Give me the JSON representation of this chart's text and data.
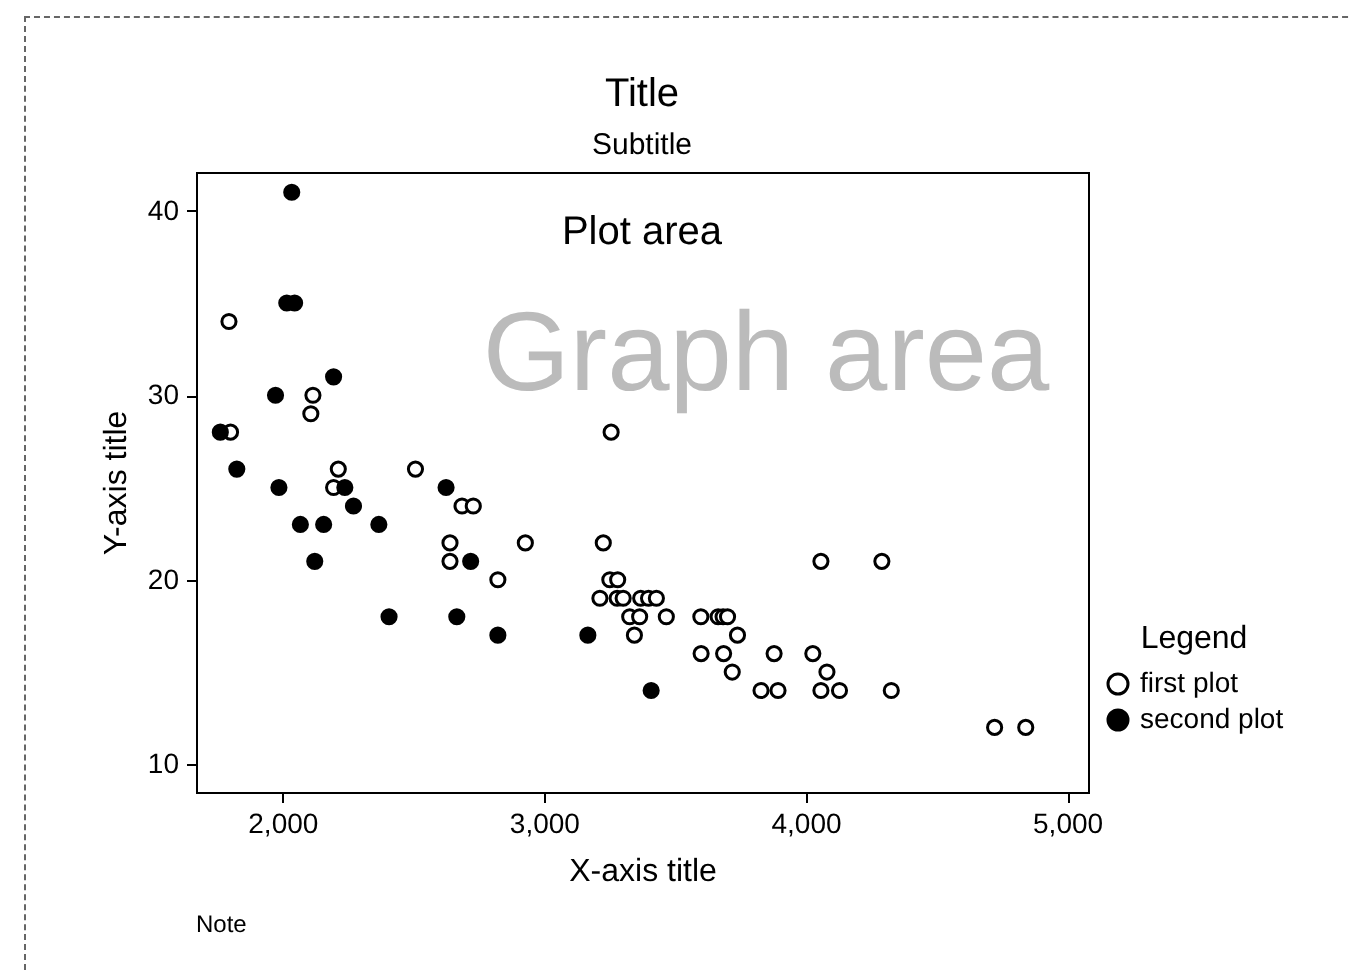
{
  "chart_data": {
    "type": "scatter",
    "title": "Title",
    "subtitle": "Subtitle",
    "xlabel": "X-axis title",
    "ylabel": "Y-axis title",
    "legend_title": "Legend",
    "annotations": [
      "Plot area",
      "Graph area",
      "Note"
    ],
    "xlim": [
      1670,
      5080
    ],
    "ylim": [
      8.5,
      42.1
    ],
    "xticks": [
      {
        "value": 2000,
        "label": "2,000"
      },
      {
        "value": 3000,
        "label": "3,000"
      },
      {
        "value": 4000,
        "label": "4,000"
      },
      {
        "value": 5000,
        "label": "5,000"
      }
    ],
    "yticks": [
      10,
      20,
      30,
      40
    ],
    "grid": false,
    "legend": "right",
    "marker": "circle",
    "series": [
      {
        "name": "first plot",
        "color": "#ffffff",
        "x": [
          1796,
          1802,
          2117,
          2109,
          3257,
          2214,
          2509,
          2196,
          2687,
          2730,
          2641,
          2929,
          2641,
          2824,
          3227,
          4059,
          4292,
          3252,
          3282,
          3214,
          3280,
          3303,
          3370,
          3400,
          3430,
          3328,
          3366,
          3468,
          3600,
          3666,
          3685,
          3702,
          3346,
          3740,
          3601,
          3687,
          3880,
          4028,
          3720,
          4082,
          3830,
          3895,
          4059,
          4130,
          4328,
          4723,
          4842
        ],
        "values": [
          34,
          28,
          30,
          29,
          28,
          26,
          26,
          25,
          24,
          24,
          22,
          22,
          21,
          20,
          22,
          21,
          21,
          20,
          20,
          19,
          19,
          19,
          19,
          19,
          19,
          18,
          18,
          18,
          18,
          18,
          18,
          18,
          17,
          17,
          16,
          16,
          16,
          16,
          15,
          15,
          14,
          14,
          14,
          14,
          14,
          12,
          12
        ]
      },
      {
        "name": "second plot",
        "color": "#000000",
        "x": [
          2036,
          2017,
          2047,
          2196,
          1974,
          1763,
          1826,
          1987,
          2239,
          2272,
          2069,
          2158,
          2369,
          2124,
          2626,
          2720,
          2408,
          2667,
          2824,
          3168,
          3410
        ],
        "values": [
          41,
          35,
          35,
          31,
          30,
          28,
          26,
          25,
          25,
          24,
          23,
          23,
          23,
          21,
          25,
          21,
          18,
          18,
          17,
          17,
          14
        ]
      }
    ]
  }
}
